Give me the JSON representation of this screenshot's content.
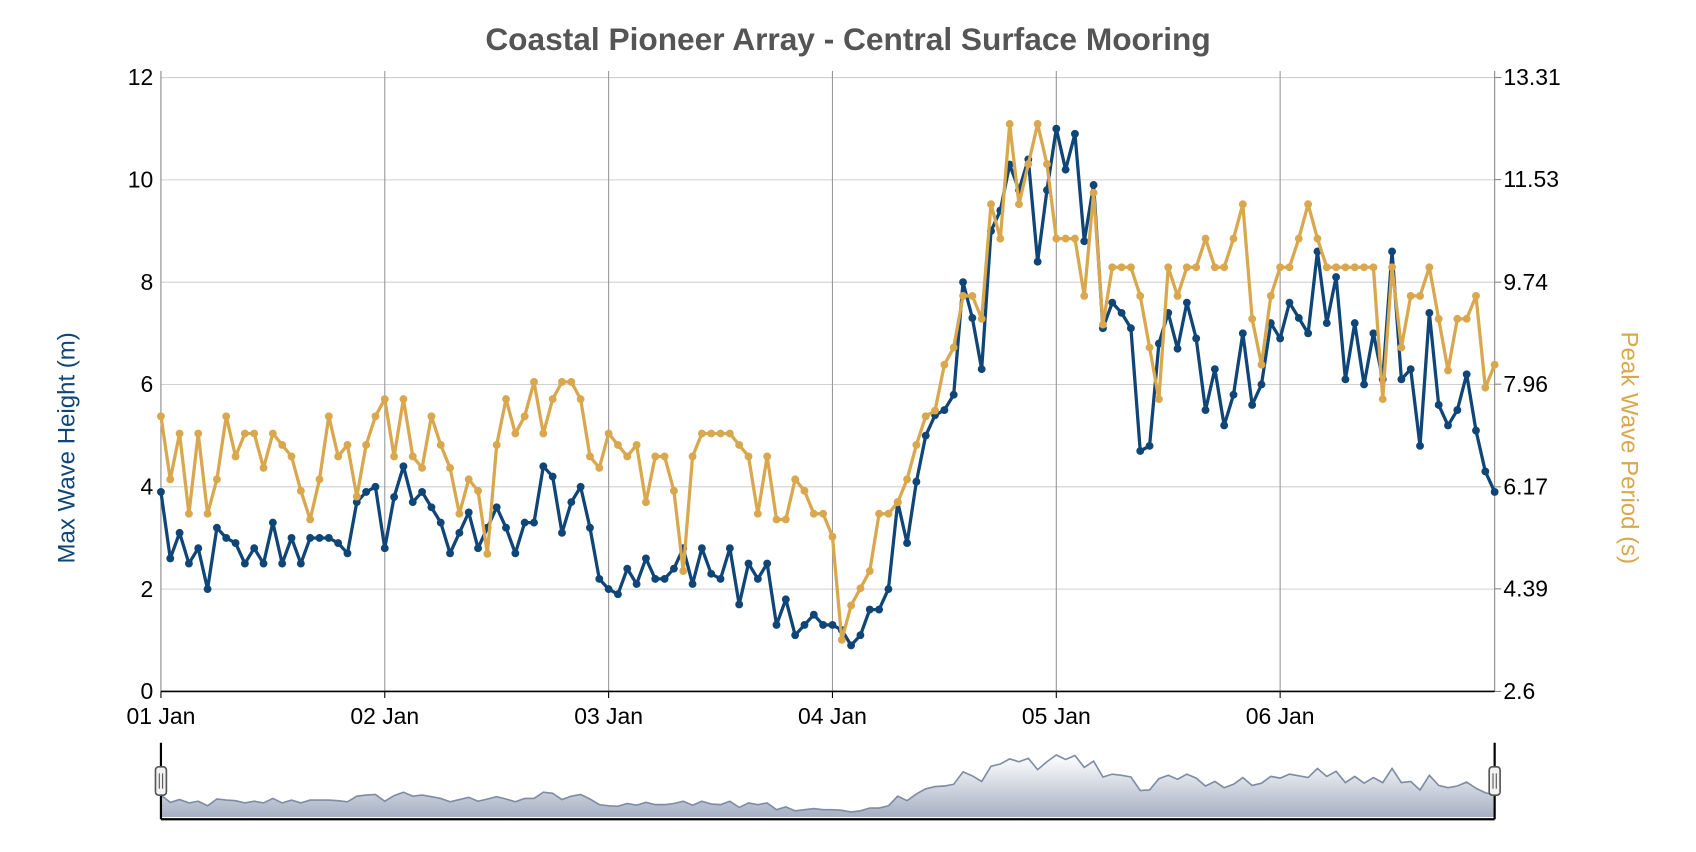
{
  "chart_data": {
    "type": "line",
    "title": "Coastal Pioneer Array - Central Surface Mooring",
    "y_axis_title": "Max Wave Height (m)",
    "y2_axis_title": "Peak Wave Period (s)",
    "categories": [
      "01 Jan",
      null,
      null,
      null,
      null,
      null,
      null,
      null,
      null,
      null,
      null,
      null,
      null,
      null,
      null,
      null,
      null,
      null,
      null,
      null,
      null,
      null,
      null,
      null,
      "02 Jan",
      null,
      null,
      null,
      null,
      null,
      null,
      null,
      null,
      null,
      null,
      null,
      null,
      null,
      null,
      null,
      null,
      null,
      null,
      null,
      null,
      null,
      null,
      null,
      "03 Jan",
      null,
      null,
      null,
      null,
      null,
      null,
      null,
      null,
      null,
      null,
      null,
      null,
      null,
      null,
      null,
      null,
      null,
      null,
      null,
      null,
      null,
      null,
      null,
      "04 Jan",
      null,
      null,
      null,
      null,
      null,
      null,
      null,
      null,
      null,
      null,
      null,
      null,
      null,
      null,
      null,
      null,
      null,
      null,
      null,
      null,
      null,
      null,
      null,
      "05 Jan",
      null,
      null,
      null,
      null,
      null,
      null,
      null,
      null,
      null,
      null,
      null,
      null,
      null,
      null,
      null,
      null,
      null,
      null,
      null,
      null,
      null,
      null,
      null,
      "06 Jan",
      null,
      null,
      null,
      null,
      null,
      null,
      null,
      null,
      null,
      null,
      null,
      null,
      null,
      null,
      null,
      null,
      null,
      null,
      null,
      null,
      null,
      null,
      null
    ],
    "series": [
      {
        "color": "#0f4677",
        "axis": "y",
        "values": [
          3.9,
          2.6,
          3.1,
          2.5,
          2.8,
          2.0,
          3.2,
          3.0,
          2.9,
          2.5,
          2.8,
          2.5,
          3.3,
          2.5,
          3.0,
          2.5,
          3.0,
          3.0,
          3.0,
          2.9,
          2.7,
          3.7,
          3.9,
          4.0,
          2.8,
          3.8,
          4.4,
          3.7,
          3.9,
          3.6,
          3.3,
          2.7,
          3.1,
          3.5,
          2.8,
          3.2,
          3.6,
          3.2,
          2.7,
          3.3,
          3.3,
          4.4,
          4.2,
          3.1,
          3.7,
          4.0,
          3.2,
          2.2,
          2.0,
          1.9,
          2.4,
          2.1,
          2.6,
          2.2,
          2.2,
          2.4,
          2.8,
          2.1,
          2.8,
          2.3,
          2.2,
          2.8,
          1.7,
          2.5,
          2.2,
          2.5,
          1.3,
          1.8,
          1.1,
          1.3,
          1.5,
          1.3,
          1.3,
          1.2,
          0.9,
          1.1,
          1.6,
          1.6,
          2.0,
          3.7,
          2.9,
          4.1,
          5.0,
          5.4,
          5.5,
          5.8,
          8.0,
          7.3,
          6.3,
          9.0,
          9.4,
          10.3,
          9.8,
          10.4,
          8.4,
          9.8,
          11.0,
          10.2,
          10.9,
          8.8,
          9.9,
          7.1,
          7.6,
          7.4,
          7.1,
          4.7,
          4.8,
          6.8,
          7.4,
          6.7,
          7.6,
          6.9,
          5.5,
          6.3,
          5.2,
          5.8,
          7.0,
          5.6,
          6.0,
          7.2,
          6.9,
          7.6,
          7.3,
          7.0,
          8.6,
          7.2,
          8.1,
          6.1,
          7.2,
          6.0,
          7.0,
          6.1,
          8.6,
          6.1,
          6.3,
          4.8,
          7.4,
          5.6,
          5.2,
          5.5,
          6.2,
          5.1,
          4.3,
          3.9
        ]
      },
      {
        "color": "#d9a84e",
        "axis": "y2",
        "values": [
          7.4,
          6.3,
          7.1,
          5.7,
          7.1,
          5.7,
          6.3,
          7.4,
          6.7,
          7.1,
          7.1,
          6.5,
          7.1,
          6.9,
          6.7,
          6.1,
          5.6,
          6.3,
          7.4,
          6.7,
          6.9,
          6.0,
          6.9,
          7.4,
          7.7,
          6.7,
          7.7,
          6.7,
          6.5,
          7.4,
          6.9,
          6.5,
          5.7,
          6.3,
          6.1,
          5.0,
          6.9,
          7.7,
          7.1,
          7.4,
          8.0,
          7.1,
          7.7,
          8.0,
          8.0,
          7.7,
          6.7,
          6.5,
          7.1,
          6.9,
          6.7,
          6.9,
          5.9,
          6.7,
          6.7,
          6.1,
          4.7,
          6.7,
          7.1,
          7.1,
          7.1,
          7.1,
          6.9,
          6.7,
          5.7,
          6.7,
          5.6,
          5.6,
          6.3,
          6.1,
          5.7,
          5.7,
          5.3,
          3.5,
          4.1,
          4.4,
          4.7,
          5.7,
          5.7,
          5.9,
          6.3,
          6.9,
          7.4,
          7.5,
          8.3,
          8.6,
          9.5,
          9.5,
          9.1,
          11.1,
          10.5,
          12.5,
          11.1,
          11.8,
          12.5,
          11.8,
          10.5,
          10.5,
          10.5,
          9.5,
          11.3,
          9.0,
          10.0,
          10.0,
          10.0,
          9.5,
          8.6,
          7.7,
          10.0,
          9.5,
          10.0,
          10.0,
          10.5,
          10.0,
          10.0,
          10.5,
          11.1,
          9.1,
          8.3,
          9.5,
          10.0,
          10.0,
          10.5,
          11.1,
          10.5,
          10.0,
          10.0,
          10.0,
          10.0,
          10.0,
          10.0,
          7.7,
          10.0,
          8.6,
          9.5,
          9.5,
          10.0,
          9.1,
          8.2,
          9.1,
          9.1,
          9.5,
          7.9,
          8.3
        ]
      }
    ],
    "ylim": [
      0,
      12
    ],
    "yticks": [
      0,
      2,
      4,
      6,
      8,
      10,
      12
    ],
    "y2lim": [
      2.6,
      13.31
    ],
    "y2ticks": [
      2.6,
      4.39,
      6.17,
      7.96,
      9.74,
      11.53,
      13.31
    ],
    "grid": true
  }
}
